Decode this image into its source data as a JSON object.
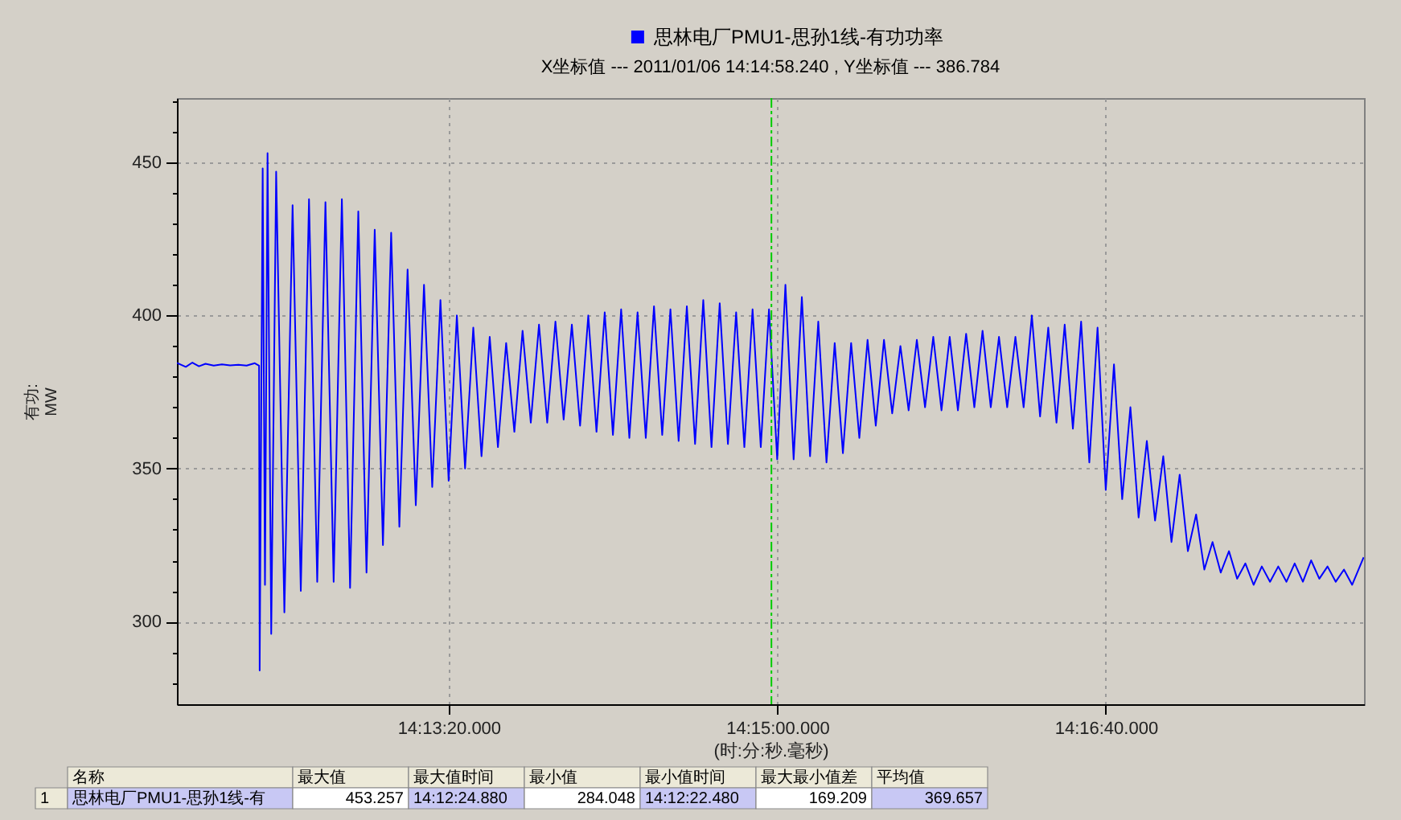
{
  "chart_data": {
    "type": "line",
    "subtitle": "X坐标值 --- 2011/01/06 14:14:58.240 , Y坐标值 --- 386.784",
    "xlabel": "(时:分:秒.毫秒)",
    "ylabel": "有功:\nMW",
    "x": [
      "2011-01-06T14:11:57.3",
      "2011-01-06T14:12:00",
      "2011-01-06T14:12:02",
      "2011-01-06T14:12:04",
      "2011-01-06T14:12:06",
      "2011-01-06T14:12:08.5",
      "2011-01-06T14:12:11",
      "2011-01-06T14:12:13.5",
      "2011-01-06T14:12:16",
      "2011-01-06T14:12:18.5",
      "2011-01-06T14:12:21",
      "2011-01-06T14:12:22.3",
      "2011-01-06T14:12:22.48",
      "2011-01-06T14:12:23.4",
      "2011-01-06T14:12:24.1",
      "2011-01-06T14:12:24.88",
      "2011-01-06T14:12:26",
      "2011-01-06T14:12:27.5",
      "2011-01-06T14:12:30",
      "2011-01-06T14:12:32.5",
      "2011-01-06T14:12:35",
      "2011-01-06T14:12:37.5",
      "2011-01-06T14:12:40",
      "2011-01-06T14:12:42.5",
      "2011-01-06T14:12:45",
      "2011-01-06T14:12:47.5",
      "2011-01-06T14:12:50",
      "2011-01-06T14:12:52.5",
      "2011-01-06T14:12:55",
      "2011-01-06T14:12:57.5",
      "2011-01-06T14:13:00",
      "2011-01-06T14:13:02.5",
      "2011-01-06T14:13:05",
      "2011-01-06T14:13:07.5",
      "2011-01-06T14:13:10",
      "2011-01-06T14:13:12.5",
      "2011-01-06T14:13:15",
      "2011-01-06T14:13:17.5",
      "2011-01-06T14:13:20",
      "2011-01-06T14:13:22.5",
      "2011-01-06T14:13:25",
      "2011-01-06T14:13:27.5",
      "2011-01-06T14:13:30",
      "2011-01-06T14:13:32.5",
      "2011-01-06T14:13:35",
      "2011-01-06T14:13:37.5",
      "2011-01-06T14:13:40",
      "2011-01-06T14:13:42.5",
      "2011-01-06T14:13:45",
      "2011-01-06T14:13:47.5",
      "2011-01-06T14:13:50",
      "2011-01-06T14:13:52.5",
      "2011-01-06T14:13:55",
      "2011-01-06T14:13:57.5",
      "2011-01-06T14:14:00",
      "2011-01-06T14:14:02.5",
      "2011-01-06T14:14:05",
      "2011-01-06T14:14:07.5",
      "2011-01-06T14:14:10",
      "2011-01-06T14:14:12.5",
      "2011-01-06T14:14:15",
      "2011-01-06T14:14:17.5",
      "2011-01-06T14:14:20",
      "2011-01-06T14:14:22.5",
      "2011-01-06T14:14:25",
      "2011-01-06T14:14:27.5",
      "2011-01-06T14:14:30",
      "2011-01-06T14:14:32.5",
      "2011-01-06T14:14:35",
      "2011-01-06T14:14:37.5",
      "2011-01-06T14:14:40",
      "2011-01-06T14:14:42.5",
      "2011-01-06T14:14:45",
      "2011-01-06T14:14:47.5",
      "2011-01-06T14:14:50",
      "2011-01-06T14:14:52.5",
      "2011-01-06T14:14:55",
      "2011-01-06T14:14:57.5",
      "2011-01-06T14:15:00",
      "2011-01-06T14:15:02.5",
      "2011-01-06T14:15:05",
      "2011-01-06T14:15:07.5",
      "2011-01-06T14:15:10",
      "2011-01-06T14:15:12.5",
      "2011-01-06T14:15:15",
      "2011-01-06T14:15:17.5",
      "2011-01-06T14:15:20",
      "2011-01-06T14:15:22.5",
      "2011-01-06T14:15:25",
      "2011-01-06T14:15:27.5",
      "2011-01-06T14:15:30",
      "2011-01-06T14:15:32.5",
      "2011-01-06T14:15:35",
      "2011-01-06T14:15:37.5",
      "2011-01-06T14:15:40",
      "2011-01-06T14:15:42.5",
      "2011-01-06T14:15:45",
      "2011-01-06T14:15:47.5",
      "2011-01-06T14:15:50",
      "2011-01-06T14:15:52.5",
      "2011-01-06T14:15:55",
      "2011-01-06T14:15:57.5",
      "2011-01-06T14:16:00",
      "2011-01-06T14:16:02.5",
      "2011-01-06T14:16:05",
      "2011-01-06T14:16:07.5",
      "2011-01-06T14:16:10",
      "2011-01-06T14:16:12.5",
      "2011-01-06T14:16:15",
      "2011-01-06T14:16:17.5",
      "2011-01-06T14:16:20",
      "2011-01-06T14:16:22.5",
      "2011-01-06T14:16:25",
      "2011-01-06T14:16:27.5",
      "2011-01-06T14:16:30",
      "2011-01-06T14:16:32.5",
      "2011-01-06T14:16:35",
      "2011-01-06T14:16:37.5",
      "2011-01-06T14:16:40",
      "2011-01-06T14:16:42.5",
      "2011-01-06T14:16:45",
      "2011-01-06T14:16:47.5",
      "2011-01-06T14:16:50",
      "2011-01-06T14:16:52.5",
      "2011-01-06T14:16:55",
      "2011-01-06T14:16:57.5",
      "2011-01-06T14:17:00",
      "2011-01-06T14:17:02.5",
      "2011-01-06T14:17:05",
      "2011-01-06T14:17:07.5",
      "2011-01-06T14:17:10",
      "2011-01-06T14:17:12.5",
      "2011-01-06T14:17:15",
      "2011-01-06T14:17:17.5",
      "2011-01-06T14:17:20",
      "2011-01-06T14:17:22.5",
      "2011-01-06T14:17:25",
      "2011-01-06T14:17:27.5",
      "2011-01-06T14:17:30",
      "2011-01-06T14:17:32.5",
      "2011-01-06T14:17:35",
      "2011-01-06T14:17:37.5",
      "2011-01-06T14:17:40",
      "2011-01-06T14:17:42.5",
      "2011-01-06T14:17:45",
      "2011-01-06T14:17:47.5",
      "2011-01-06T14:17:50",
      "2011-01-06T14:17:52.5",
      "2011-01-06T14:17:55",
      "2011-01-06T14:17:58.5"
    ],
    "series": [
      {
        "name": "思林电厂PMU1-思孙1线-有功功率",
        "color": "#0000ff",
        "values": [
          384.5,
          383.2,
          384.6,
          383.4,
          384.2,
          383.6,
          384.0,
          383.7,
          383.9,
          383.6,
          384.4,
          383.6,
          284,
          448,
          312,
          453,
          296,
          447,
          303,
          436,
          310,
          438,
          313,
          437,
          313,
          438,
          311,
          434,
          316,
          428,
          325,
          427,
          331,
          415,
          338,
          410,
          344,
          405,
          346,
          400,
          350,
          396,
          354,
          393,
          357,
          391,
          362,
          395,
          365,
          397,
          365,
          398,
          366,
          397,
          364,
          400,
          362,
          401,
          361,
          402,
          360,
          401,
          360,
          403,
          361,
          402,
          359,
          403,
          358,
          405,
          357,
          404,
          358,
          401,
          357,
          402,
          357,
          402,
          353,
          410,
          353,
          406,
          354,
          398,
          352,
          391,
          355,
          391,
          360,
          392,
          364,
          392,
          368,
          390,
          369,
          392,
          370,
          393,
          369,
          393,
          369,
          394,
          370,
          395,
          370,
          393,
          370,
          393,
          370,
          400,
          367,
          396,
          365,
          397,
          363,
          398,
          352,
          396,
          343,
          384,
          340,
          370,
          334,
          359,
          333,
          354,
          326,
          348,
          323,
          335,
          317,
          326,
          316,
          323,
          314,
          319,
          312,
          318,
          313,
          318,
          313,
          319,
          313,
          320,
          314,
          318,
          313,
          317,
          312,
          321
        ]
      }
    ],
    "xlim": [
      "2011-01-06T14:11:57.3",
      "2011-01-06T14:17:58.6"
    ],
    "xticks": [
      {
        "value": "2011-01-06T14:13:20",
        "label": "14:13:20.000"
      },
      {
        "value": "2011-01-06T14:15:00",
        "label": "14:15:00.000"
      },
      {
        "value": "2011-01-06T14:16:40",
        "label": "14:16:40.000"
      }
    ],
    "ylim": [
      273,
      471
    ],
    "yticks": [
      {
        "value": 280,
        "label": null
      },
      {
        "value": 290,
        "label": null
      },
      300,
      {
        "value": 310,
        "label": null
      },
      {
        "value": 320,
        "label": null
      },
      {
        "value": 330,
        "label": null
      },
      {
        "value": 340,
        "label": null
      },
      350,
      {
        "value": 360,
        "label": null
      },
      {
        "value": 370,
        "label": null
      },
      {
        "value": 380,
        "label": null
      },
      {
        "value": 390,
        "label": null
      },
      400,
      {
        "value": 410,
        "label": null
      },
      {
        "value": 420,
        "label": null
      },
      {
        "value": 430,
        "label": null
      },
      {
        "value": 440,
        "label": null
      },
      450,
      {
        "value": 460,
        "label": null
      },
      {
        "value": 470,
        "label": null
      }
    ],
    "grid": true,
    "legend": "top",
    "ref_lines": [
      {
        "axis": "x",
        "value": "2011-01-06T14:14:58.24",
        "color": "#00cc00",
        "line_style": "dashed"
      }
    ],
    "annotations": [
      "名称",
      "最大值",
      "最大值时间",
      "最小值",
      "最小值时间",
      "最大最小值差",
      "平均值",
      "1",
      "思林电厂PMU1-思孙1线-有",
      "453.257",
      "14:12:24.880",
      "284.048",
      "14:12:22.480",
      "169.209",
      "369.657"
    ]
  }
}
